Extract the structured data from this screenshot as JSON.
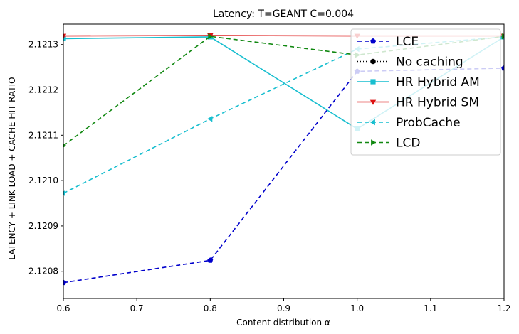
{
  "chart_data": {
    "type": "line",
    "title": "Latency: T=GEANT C=0.004",
    "xlabel": "Content distribution α",
    "ylabel": "LATENCY + LINK LOAD + CACHE HIT RATIO",
    "xlim": [
      0.6,
      1.2
    ],
    "ylim": [
      2.12074,
      2.121345
    ],
    "xticks": [
      "0.6",
      "0.7",
      "0.8",
      "0.9",
      "1.0",
      "1.1",
      "1.2"
    ],
    "yticks": [
      "2.1208",
      "2.1209",
      "2.1210",
      "2.1211",
      "2.1212",
      "2.1213"
    ],
    "x": [
      0.6,
      0.8,
      1.0,
      1.2
    ],
    "legend_position": "upper right",
    "series": [
      {
        "name": "LCE",
        "values": [
          2.120775,
          2.120824,
          2.121241,
          2.121248
        ],
        "color": "#0000cc",
        "dash": "6,4",
        "marker": "pentagon"
      },
      {
        "name": "No caching",
        "values": [
          null,
          null,
          null,
          null
        ],
        "color": "#000000",
        "dash": "1,3",
        "marker": "circle"
      },
      {
        "name": "HR Hybrid AM",
        "values": [
          2.121313,
          2.121317,
          2.121114,
          2.121317
        ],
        "color": "#17becf",
        "dash": "",
        "marker": "square"
      },
      {
        "name": "HR Hybrid SM",
        "values": [
          2.121319,
          2.12132,
          2.121319,
          2.121319
        ],
        "color": "#dd1111",
        "dash": "",
        "marker": "triangle-down"
      },
      {
        "name": "ProbCache",
        "values": [
          2.120972,
          2.121136,
          2.12129,
          2.121317
        ],
        "color": "#17becf",
        "dash": "6,4",
        "marker": "triangle-left"
      },
      {
        "name": "LCD",
        "values": [
          2.121077,
          2.121318,
          2.121277,
          2.121318
        ],
        "color": "#118811",
        "dash": "6,4",
        "marker": "triangle-right"
      }
    ]
  }
}
